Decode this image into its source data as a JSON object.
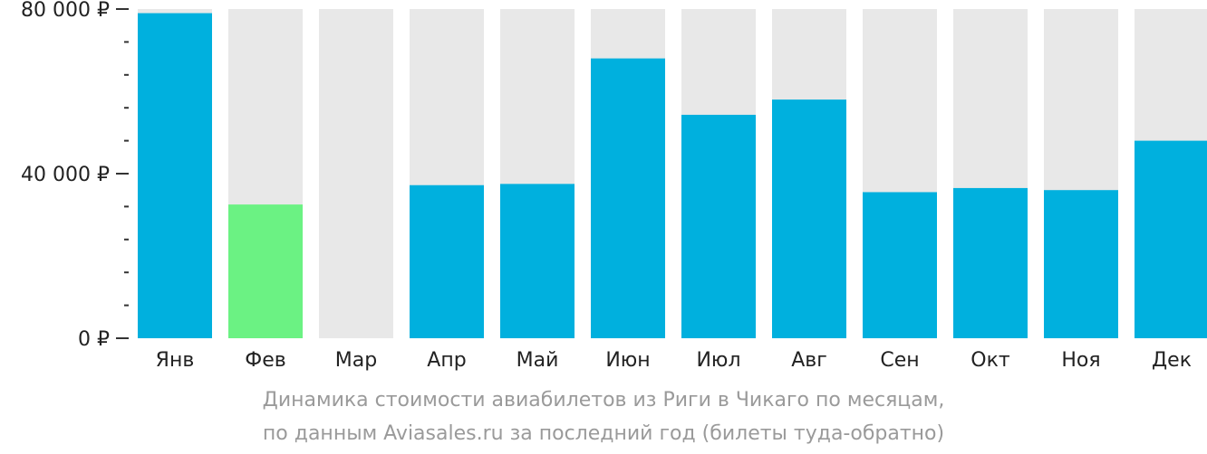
{
  "chart_data": {
    "type": "bar",
    "categories": [
      "Янв",
      "Фев",
      "Мар",
      "Апр",
      "Май",
      "Июн",
      "Июл",
      "Авг",
      "Сен",
      "Окт",
      "Ноя",
      "Дек"
    ],
    "values": [
      79000,
      32500,
      null,
      37200,
      37500,
      68000,
      54300,
      58000,
      35500,
      36500,
      36000,
      48000
    ],
    "ylim": [
      0,
      80000
    ],
    "y_tick_labels": [
      {
        "value": 0,
        "label": "0 ₽"
      },
      {
        "value": 40000,
        "label": "40 000 ₽"
      },
      {
        "value": 80000,
        "label": "80 000 ₽"
      }
    ],
    "y_minor_step": 8000,
    "highlight_index": 1,
    "colors": {
      "bar": "#00b0de",
      "highlight": "#6bf283",
      "background_bar": "#e8e8e8",
      "axis": "#333333",
      "tick_text": "#222222",
      "caption": "#9a9a9a"
    },
    "caption": [
      "Динамика стоимости авиабилетов из Риги в Чикаго по месяцам,",
      "по данным Aviasales.ru за последний год (билеты туда-обратно)"
    ]
  }
}
